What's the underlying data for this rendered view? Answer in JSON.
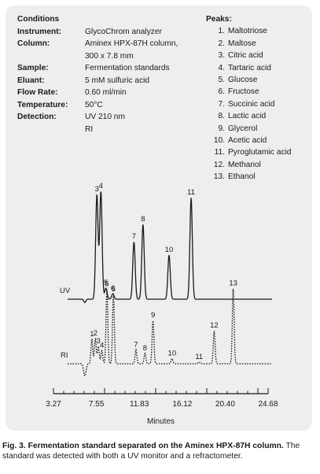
{
  "conditions": {
    "header": "Conditions",
    "rows": [
      {
        "key": "Instrument:",
        "value": "GlycoChrom analyzer"
      },
      {
        "key": "Column:",
        "value": "Aminex HPX-87H column,",
        "value2": "300 x 7.8 mm"
      },
      {
        "key": "Sample:",
        "value": "Fermentation standards"
      },
      {
        "key": "Eluant:",
        "value": "5 mM sulfuric acid"
      },
      {
        "key": "Flow Rate:",
        "value": "0.60 ml/min"
      },
      {
        "key": "Temperature:",
        "value": "50°C"
      },
      {
        "key": "Detection:",
        "value": "UV 210 nm",
        "value2": "RI"
      }
    ]
  },
  "peaks": {
    "header": "Peaks:",
    "items": [
      {
        "num": "1.",
        "name": "Maltotriose"
      },
      {
        "num": "2.",
        "name": "Maltose"
      },
      {
        "num": "3.",
        "name": "Citric acid"
      },
      {
        "num": "4.",
        "name": "Tartaric acid"
      },
      {
        "num": "5.",
        "name": "Glucose"
      },
      {
        "num": "6.",
        "name": "Fructose"
      },
      {
        "num": "7.",
        "name": "Succinic acid"
      },
      {
        "num": "8.",
        "name": "Lactic acid"
      },
      {
        "num": "9.",
        "name": "Glycerol"
      },
      {
        "num": "10.",
        "name": "Acetic acid"
      },
      {
        "num": "11.",
        "name": "Pyroglutamic acid"
      },
      {
        "num": "12.",
        "name": "Methanol"
      },
      {
        "num": "13.",
        "name": "Ethanol"
      }
    ]
  },
  "chart_data": {
    "type": "line",
    "xlabel": "Minutes",
    "xlim": [
      3.27,
      24.68
    ],
    "xticks": [
      "3.27",
      "7.55",
      "11.83",
      "16.12",
      "20.40",
      "24.68"
    ],
    "series": [
      {
        "name": "UV",
        "style": "solid",
        "baseline_label": "UV",
        "peaks": [
          {
            "label": "3",
            "t": 7.6,
            "height": 0.95
          },
          {
            "label": "4",
            "t": 8.0,
            "height": 0.98
          },
          {
            "label": "5",
            "t": 8.5,
            "height": 0.1
          },
          {
            "label": "6",
            "t": 9.2,
            "height": 0.05
          },
          {
            "label": "7",
            "t": 11.3,
            "height": 0.52
          },
          {
            "label": "8",
            "t": 12.2,
            "height": 0.68
          },
          {
            "label": "10",
            "t": 14.8,
            "height": 0.4
          },
          {
            "label": "11",
            "t": 17.0,
            "height": 0.92
          }
        ]
      },
      {
        "name": "RI",
        "style": "dotted",
        "baseline_label": "RI",
        "peaks": [
          {
            "label": "1",
            "t": 7.1,
            "height": 0.28
          },
          {
            "label": "2",
            "t": 7.45,
            "height": 0.29
          },
          {
            "label": "3",
            "t": 7.75,
            "height": 0.2
          },
          {
            "label": "4",
            "t": 8.1,
            "height": 0.15
          },
          {
            "label": "5",
            "t": 8.6,
            "height": 0.86
          },
          {
            "label": "6",
            "t": 9.25,
            "height": 0.8
          },
          {
            "label": "7",
            "t": 11.5,
            "height": 0.16
          },
          {
            "label": "8",
            "t": 12.4,
            "height": 0.12
          },
          {
            "label": "9",
            "t": 13.2,
            "height": 0.5
          },
          {
            "label": "10",
            "t": 15.1,
            "height": 0.06
          },
          {
            "label": "11",
            "t": 17.8,
            "height": 0.02
          },
          {
            "label": "12",
            "t": 19.3,
            "height": 0.38
          },
          {
            "label": "13",
            "t": 21.2,
            "height": 0.87
          }
        ]
      }
    ]
  },
  "caption": {
    "bold": "Fig. 3. Fermentation standard separated on the Aminex HPX-87H column.",
    "rest": " The standard was detected with both a UV monitor and a refractometer."
  }
}
